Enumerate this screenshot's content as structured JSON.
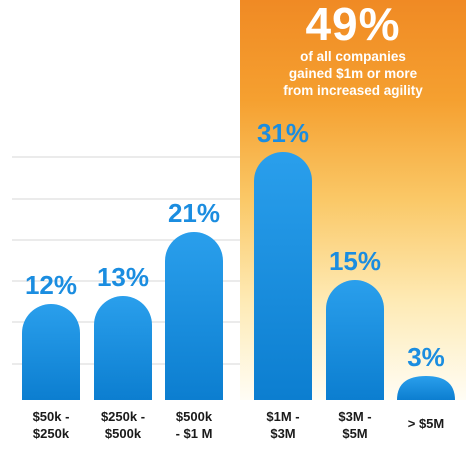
{
  "chart_data": {
    "type": "bar",
    "categories": [
      [
        "$50k -",
        "$250k"
      ],
      [
        "$250k -",
        "$500k"
      ],
      [
        "$500k",
        "- $1 M"
      ],
      [
        "$1M -",
        "$3M"
      ],
      [
        "$3M -",
        "$5M"
      ],
      [
        "> $5M"
      ]
    ],
    "values": [
      12,
      13,
      21,
      31,
      15,
      3
    ],
    "value_labels": [
      "12%",
      "13%",
      "21%",
      "31%",
      "15%",
      "3%"
    ],
    "ylim": [
      0,
      40
    ],
    "grid": true,
    "highlight": {
      "range_start_index": 3,
      "headline": "49%",
      "subtext": [
        "of all companies",
        "gained $1m or more",
        "from increased agility"
      ],
      "gradient_top": "#f08a24",
      "gradient_bottom": "#fffdf5"
    },
    "colors": {
      "bar_top": "#2a9fec",
      "bar_bottom": "#0c7ed0",
      "value_label": "#1b8de0",
      "category_label": "#1a1a1a",
      "grid": "#d7d7d7"
    }
  }
}
